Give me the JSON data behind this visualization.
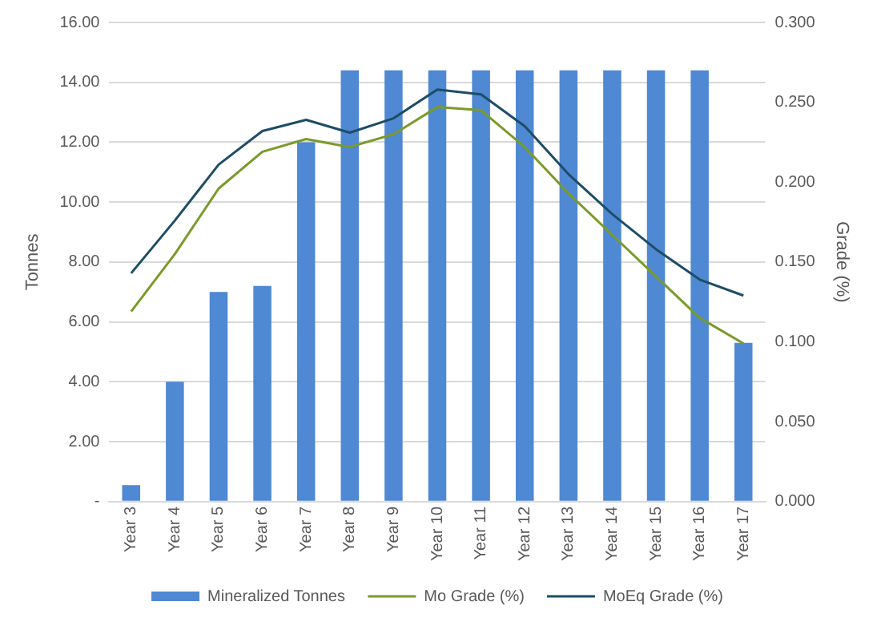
{
  "chart_data": {
    "type": "bar",
    "ylabel": "Tonnes",
    "y2label": "Grade (%)",
    "categories": [
      "Year 3",
      "Year 4",
      "Year 5",
      "Year 6",
      "Year 7",
      "Year 8",
      "Year 9",
      "Year 10",
      "Year 11",
      "Year 12",
      "Year 13",
      "Year 14",
      "Year 15",
      "Year 16",
      "Year 17"
    ],
    "series": [
      {
        "name": "Mineralized Tonnes",
        "color": "#4f88d3",
        "values": [
          0.55,
          4.0,
          7.0,
          7.2,
          12.0,
          14.4,
          14.4,
          14.4,
          14.4,
          14.4,
          14.4,
          14.4,
          14.4,
          14.4,
          5.3
        ]
      },
      {
        "name": "Mo Grade (%)",
        "type": "line",
        "axis": "y2",
        "color": "#7a9a2a",
        "values": [
          0.119,
          0.155,
          0.196,
          0.219,
          0.227,
          0.222,
          0.23,
          0.247,
          0.245,
          0.222,
          0.193,
          0.167,
          0.141,
          0.115,
          0.099
        ]
      },
      {
        "name": "MoEq Grade (%)",
        "type": "line",
        "axis": "y2",
        "color": "#1d4d66",
        "values": [
          0.143,
          0.176,
          0.211,
          0.232,
          0.239,
          0.231,
          0.24,
          0.258,
          0.255,
          0.235,
          0.205,
          0.18,
          0.158,
          0.139,
          0.129
        ]
      }
    ],
    "ylim": [
      0,
      16
    ],
    "yticks": [
      {
        "value": 0,
        "label": "-"
      },
      {
        "value": 2,
        "label": "2.00"
      },
      {
        "value": 4,
        "label": "4.00"
      },
      {
        "value": 6,
        "label": "6.00"
      },
      {
        "value": 8,
        "label": "8.00"
      },
      {
        "value": 10,
        "label": "10.00"
      },
      {
        "value": 12,
        "label": "12.00"
      },
      {
        "value": 14,
        "label": "14.00"
      },
      {
        "value": 16,
        "label": "16.00"
      }
    ],
    "y2lim": [
      0,
      0.3
    ],
    "y2ticks": [
      {
        "value": 0,
        "label": "0.000"
      },
      {
        "value": 0.05,
        "label": "0.050"
      },
      {
        "value": 0.1,
        "label": "0.100"
      },
      {
        "value": 0.15,
        "label": "0.150"
      },
      {
        "value": 0.2,
        "label": "0.200"
      },
      {
        "value": 0.25,
        "label": "0.250"
      },
      {
        "value": 0.3,
        "label": "0.300"
      }
    ],
    "grid": "y",
    "legend": "bottom",
    "marker": "none",
    "line_style": "solid"
  }
}
